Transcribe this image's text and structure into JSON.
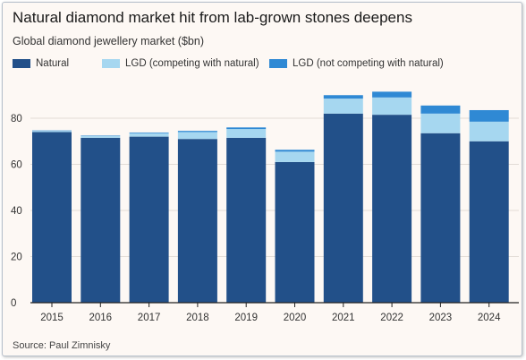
{
  "title": "Natural diamond market hit from lab-grown stones deepens",
  "subtitle": "Global diamond jewellery market ($bn)",
  "source": "Source: Paul Zimnisky",
  "chart_data": {
    "type": "bar",
    "stacked": true,
    "title": "Natural diamond market hit from lab-grown stones deepens",
    "subtitle": "Global diamond jewellery market ($bn)",
    "xlabel": "",
    "ylabel": "",
    "ylim": [
      0,
      90
    ],
    "yticks": [
      0,
      20,
      40,
      60,
      80
    ],
    "grid": true,
    "legend_position": "top",
    "categories": [
      "2015",
      "2016",
      "2017",
      "2018",
      "2019",
      "2020",
      "2021",
      "2022",
      "2023",
      "2024"
    ],
    "series": [
      {
        "name": "Natural",
        "color": "#225089",
        "values": [
          74,
          71.5,
          72,
          71,
          71.5,
          61,
          82,
          81.5,
          73.5,
          70
        ]
      },
      {
        "name": "LGD (competing with natural)",
        "color": "#a6d7f0",
        "values": [
          0.5,
          0.8,
          1.5,
          3,
          3.8,
          4.5,
          6.5,
          7.5,
          8.5,
          8.5
        ]
      },
      {
        "name": "LGD (not competing with natural)",
        "color": "#2f89d4",
        "values": [
          0.2,
          0.2,
          0.3,
          0.5,
          0.7,
          0.8,
          1.5,
          2.5,
          3.5,
          5
        ]
      }
    ]
  }
}
